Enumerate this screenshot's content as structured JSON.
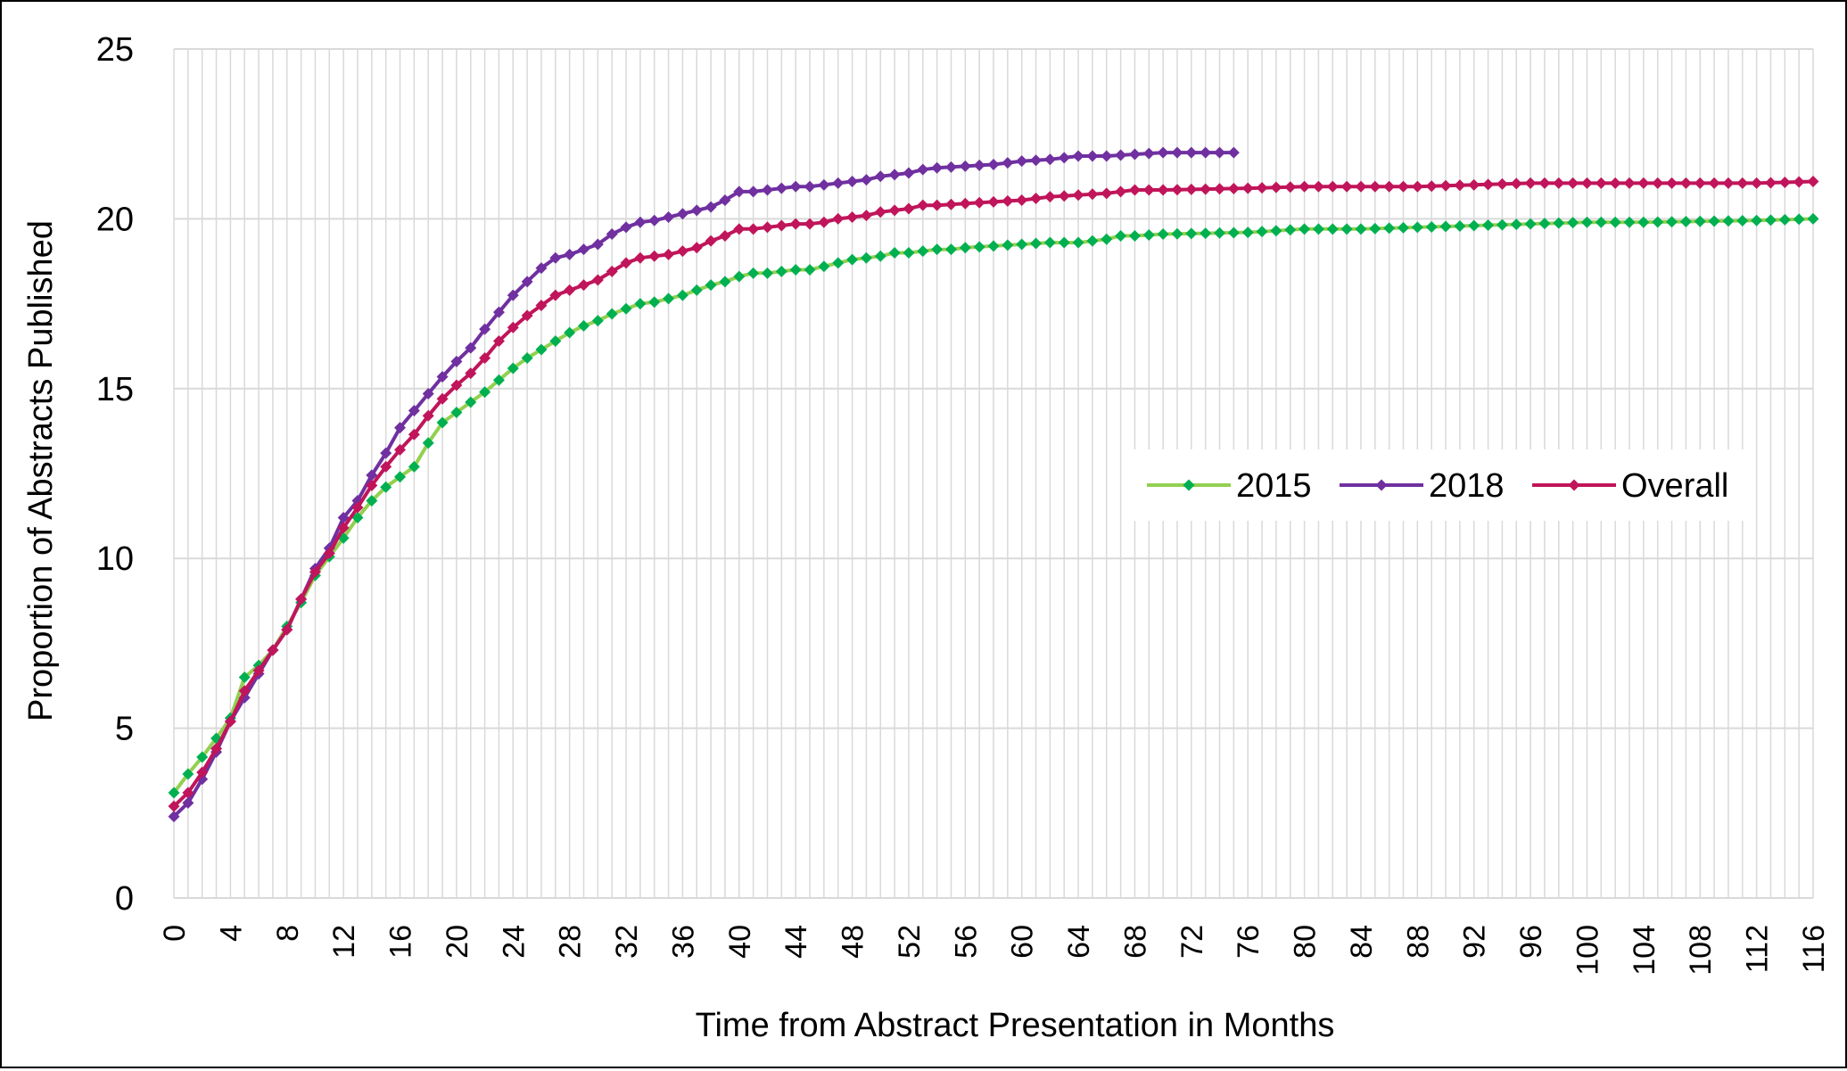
{
  "chart_data": {
    "type": "line",
    "title": "",
    "xlabel": "Time from Abstract Presentation in Months",
    "ylabel": "Proportion of Abstracts Published",
    "xlim": [
      0,
      116
    ],
    "ylim": [
      0,
      25
    ],
    "y_ticks": [
      0,
      5,
      10,
      15,
      20,
      25
    ],
    "x_tick_labels": [
      "0",
      "4",
      "8",
      "12",
      "16",
      "20",
      "24",
      "28",
      "32",
      "36",
      "40",
      "44",
      "48",
      "52",
      "56",
      "60",
      "64",
      "68",
      "72",
      "76",
      "80",
      "84",
      "88",
      "92",
      "96",
      "100",
      "104",
      "108",
      "112",
      "116"
    ],
    "grid": "on",
    "legend_position": "right-center",
    "series": [
      {
        "name": "2015",
        "color": "#00b050",
        "line_color": "#92d050",
        "marker": "diamond",
        "anchors": [
          [
            0,
            3.1
          ],
          [
            1,
            3.65
          ],
          [
            2,
            4.15
          ],
          [
            3,
            4.7
          ],
          [
            4,
            5.3
          ],
          [
            5,
            6.5
          ],
          [
            6,
            6.85
          ],
          [
            7,
            7.3
          ],
          [
            8,
            8.0
          ],
          [
            9,
            8.7
          ],
          [
            10,
            9.5
          ],
          [
            11,
            10.05
          ],
          [
            12,
            10.6
          ],
          [
            13,
            11.2
          ],
          [
            14,
            11.7
          ],
          [
            15,
            12.1
          ],
          [
            16,
            12.4
          ],
          [
            17,
            12.7
          ],
          [
            18,
            13.4
          ],
          [
            19,
            14.0
          ],
          [
            20,
            14.3
          ],
          [
            21,
            14.6
          ],
          [
            22,
            14.9
          ],
          [
            23,
            15.25
          ],
          [
            24,
            15.6
          ],
          [
            25,
            15.9
          ],
          [
            26,
            16.15
          ],
          [
            27,
            16.4
          ],
          [
            28,
            16.65
          ],
          [
            29,
            16.85
          ],
          [
            30,
            17.0
          ],
          [
            31,
            17.2
          ],
          [
            32,
            17.35
          ],
          [
            33,
            17.5
          ],
          [
            34,
            17.55
          ],
          [
            35,
            17.65
          ],
          [
            36,
            17.75
          ],
          [
            37,
            17.9
          ],
          [
            38,
            18.05
          ],
          [
            39,
            18.15
          ],
          [
            40,
            18.3
          ],
          [
            41,
            18.4
          ],
          [
            42,
            18.4
          ],
          [
            43,
            18.45
          ],
          [
            44,
            18.5
          ],
          [
            45,
            18.5
          ],
          [
            46,
            18.6
          ],
          [
            47,
            18.7
          ],
          [
            48,
            18.8
          ],
          [
            49,
            18.85
          ],
          [
            50,
            18.9
          ],
          [
            51,
            19.0
          ],
          [
            52,
            19.0
          ],
          [
            53,
            19.05
          ],
          [
            54,
            19.1
          ],
          [
            55,
            19.1
          ],
          [
            56,
            19.15
          ],
          [
            58,
            19.2
          ],
          [
            62,
            19.3
          ],
          [
            64,
            19.3
          ],
          [
            66,
            19.4
          ],
          [
            67,
            19.5
          ],
          [
            68,
            19.5
          ],
          [
            70,
            19.55
          ],
          [
            76,
            19.6
          ],
          [
            80,
            19.7
          ],
          [
            84,
            19.7
          ],
          [
            88,
            19.75
          ],
          [
            92,
            19.8
          ],
          [
            96,
            19.85
          ],
          [
            100,
            19.9
          ],
          [
            104,
            19.9
          ],
          [
            112,
            19.95
          ],
          [
            116,
            20.0
          ]
        ]
      },
      {
        "name": "2018",
        "color": "#7030a0",
        "line_color": "#7030a0",
        "marker": "diamond",
        "anchors": [
          [
            0,
            2.4
          ],
          [
            1,
            2.8
          ],
          [
            2,
            3.5
          ],
          [
            3,
            4.3
          ],
          [
            4,
            5.2
          ],
          [
            5,
            5.9
          ],
          [
            6,
            6.6
          ],
          [
            7,
            7.3
          ],
          [
            8,
            7.9
          ],
          [
            9,
            8.8
          ],
          [
            10,
            9.7
          ],
          [
            11,
            10.3
          ],
          [
            12,
            11.2
          ],
          [
            13,
            11.7
          ],
          [
            14,
            12.45
          ],
          [
            15,
            13.1
          ],
          [
            16,
            13.85
          ],
          [
            17,
            14.35
          ],
          [
            18,
            14.85
          ],
          [
            19,
            15.35
          ],
          [
            20,
            15.8
          ],
          [
            21,
            16.2
          ],
          [
            22,
            16.75
          ],
          [
            23,
            17.25
          ],
          [
            24,
            17.75
          ],
          [
            25,
            18.15
          ],
          [
            26,
            18.55
          ],
          [
            27,
            18.85
          ],
          [
            28,
            18.95
          ],
          [
            29,
            19.1
          ],
          [
            30,
            19.25
          ],
          [
            31,
            19.55
          ],
          [
            32,
            19.75
          ],
          [
            33,
            19.9
          ],
          [
            34,
            19.95
          ],
          [
            35,
            20.05
          ],
          [
            36,
            20.15
          ],
          [
            37,
            20.25
          ],
          [
            38,
            20.35
          ],
          [
            39,
            20.55
          ],
          [
            40,
            20.8
          ],
          [
            41,
            20.8
          ],
          [
            42,
            20.85
          ],
          [
            43,
            20.9
          ],
          [
            44,
            20.95
          ],
          [
            45,
            20.95
          ],
          [
            46,
            21.0
          ],
          [
            47,
            21.05
          ],
          [
            48,
            21.1
          ],
          [
            49,
            21.15
          ],
          [
            50,
            21.25
          ],
          [
            51,
            21.3
          ],
          [
            52,
            21.35
          ],
          [
            53,
            21.45
          ],
          [
            54,
            21.5
          ],
          [
            56,
            21.55
          ],
          [
            58,
            21.6
          ],
          [
            60,
            21.7
          ],
          [
            62,
            21.75
          ],
          [
            64,
            21.85
          ],
          [
            66,
            21.85
          ],
          [
            68,
            21.9
          ],
          [
            70,
            21.95
          ],
          [
            75,
            21.95
          ]
        ]
      },
      {
        "name": "Overall",
        "color": "#c0155a",
        "line_color": "#c0155a",
        "marker": "diamond",
        "anchors": [
          [
            0,
            2.7
          ],
          [
            1,
            3.1
          ],
          [
            2,
            3.7
          ],
          [
            3,
            4.4
          ],
          [
            4,
            5.2
          ],
          [
            5,
            6.1
          ],
          [
            6,
            6.7
          ],
          [
            7,
            7.3
          ],
          [
            8,
            7.9
          ],
          [
            9,
            8.8
          ],
          [
            10,
            9.6
          ],
          [
            11,
            10.15
          ],
          [
            12,
            10.9
          ],
          [
            13,
            11.5
          ],
          [
            14,
            12.15
          ],
          [
            15,
            12.7
          ],
          [
            16,
            13.2
          ],
          [
            17,
            13.65
          ],
          [
            18,
            14.2
          ],
          [
            19,
            14.7
          ],
          [
            20,
            15.1
          ],
          [
            21,
            15.45
          ],
          [
            22,
            15.9
          ],
          [
            23,
            16.4
          ],
          [
            24,
            16.8
          ],
          [
            25,
            17.15
          ],
          [
            26,
            17.45
          ],
          [
            27,
            17.75
          ],
          [
            28,
            17.9
          ],
          [
            29,
            18.05
          ],
          [
            30,
            18.2
          ],
          [
            31,
            18.45
          ],
          [
            32,
            18.7
          ],
          [
            33,
            18.85
          ],
          [
            34,
            18.9
          ],
          [
            35,
            18.95
          ],
          [
            36,
            19.05
          ],
          [
            37,
            19.15
          ],
          [
            38,
            19.35
          ],
          [
            39,
            19.5
          ],
          [
            40,
            19.7
          ],
          [
            41,
            19.7
          ],
          [
            42,
            19.75
          ],
          [
            43,
            19.8
          ],
          [
            44,
            19.85
          ],
          [
            45,
            19.85
          ],
          [
            46,
            19.9
          ],
          [
            47,
            20.0
          ],
          [
            48,
            20.05
          ],
          [
            49,
            20.1
          ],
          [
            50,
            20.2
          ],
          [
            51,
            20.25
          ],
          [
            52,
            20.3
          ],
          [
            53,
            20.4
          ],
          [
            54,
            20.4
          ],
          [
            56,
            20.45
          ],
          [
            58,
            20.5
          ],
          [
            60,
            20.55
          ],
          [
            62,
            20.65
          ],
          [
            64,
            20.7
          ],
          [
            66,
            20.75
          ],
          [
            68,
            20.85
          ],
          [
            70,
            20.85
          ],
          [
            76,
            20.9
          ],
          [
            80,
            20.95
          ],
          [
            88,
            20.95
          ],
          [
            92,
            21.0
          ],
          [
            96,
            21.05
          ],
          [
            100,
            21.05
          ],
          [
            108,
            21.05
          ],
          [
            112,
            21.05
          ],
          [
            116,
            21.1
          ]
        ]
      }
    ]
  }
}
